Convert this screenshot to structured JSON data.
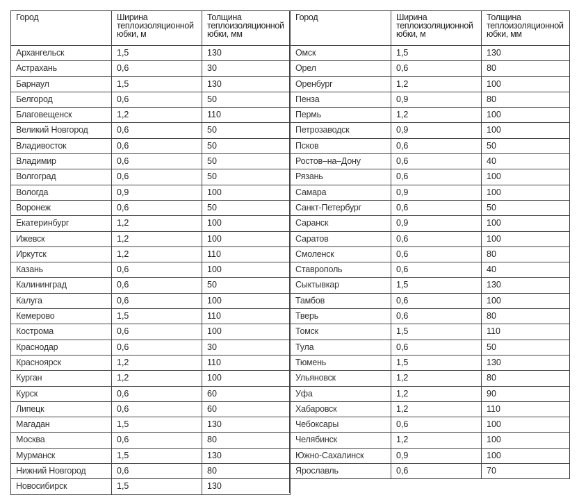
{
  "headers": {
    "city": "Город",
    "width": "Ширина теплоизоляционной юбки, м",
    "thickness": "Толщина теплоизоляционной юбки, мм"
  },
  "left_rows": [
    [
      "Архангельск",
      "1,5",
      "130"
    ],
    [
      "Астрахань",
      "0,6",
      "30"
    ],
    [
      "Барнаул",
      "1,5",
      "130"
    ],
    [
      "Белгород",
      "0,6",
      "50"
    ],
    [
      "Благовещенск",
      "1,2",
      "110"
    ],
    [
      "Великий Новгород",
      "0,6",
      "50"
    ],
    [
      "Владивосток",
      "0,6",
      "50"
    ],
    [
      "Владимир",
      "0,6",
      "50"
    ],
    [
      "Волгоград",
      "0,6",
      "50"
    ],
    [
      "Вологда",
      "0,9",
      "100"
    ],
    [
      "Воронеж",
      "0,6",
      "50"
    ],
    [
      "Екатеринбург",
      "1,2",
      "100"
    ],
    [
      "Ижевск",
      "1,2",
      "100"
    ],
    [
      "Иркутск",
      "1,2",
      "110"
    ],
    [
      "Казань",
      "0,6",
      "100"
    ],
    [
      "Калининград",
      "0,6",
      "50"
    ],
    [
      "Калуга",
      "0,6",
      "100"
    ],
    [
      "Кемерово",
      "1,5",
      "110"
    ],
    [
      "Кострома",
      "0,6",
      "100"
    ],
    [
      "Краснодар",
      "0,6",
      "30"
    ],
    [
      "Красноярск",
      "1,2",
      "110"
    ],
    [
      "Курган",
      "1,2",
      "100"
    ],
    [
      "Курск",
      "0,6",
      "60"
    ],
    [
      "Липецк",
      "0,6",
      "60"
    ],
    [
      "Магадан",
      "1,5",
      "130"
    ],
    [
      "Москва",
      "0,6",
      "80"
    ],
    [
      "Мурманск",
      "1,5",
      "130"
    ],
    [
      "Нижний Новгород",
      "0,6",
      "80"
    ],
    [
      "Новосибирск",
      "1,5",
      "130"
    ]
  ],
  "right_rows": [
    [
      "Омск",
      "1,5",
      "130"
    ],
    [
      "Орел",
      "0,6",
      "80"
    ],
    [
      "Оренбург",
      "1,2",
      "100"
    ],
    [
      "Пенза",
      "0,9",
      "80"
    ],
    [
      "Пермь",
      "1,2",
      "100"
    ],
    [
      "Петрозаводск",
      "0,9",
      "100"
    ],
    [
      "Псков",
      "0,6",
      "50"
    ],
    [
      "Ростов–на–Дону",
      "0,6",
      "40"
    ],
    [
      "Рязань",
      "0,6",
      "100"
    ],
    [
      "Самара",
      "0,9",
      "100"
    ],
    [
      "Санкт-Петербург",
      "0,6",
      "50"
    ],
    [
      "Саранск",
      "0,9",
      "100"
    ],
    [
      "Саратов",
      "0,6",
      "100"
    ],
    [
      "Смоленск",
      "0,6",
      "80"
    ],
    [
      "Ставрополь",
      "0,6",
      "40"
    ],
    [
      "Сыктывкар",
      "1,5",
      "130"
    ],
    [
      "Тамбов",
      "0,6",
      "100"
    ],
    [
      "Тверь",
      "0,6",
      "80"
    ],
    [
      "Томск",
      "1,5",
      "110"
    ],
    [
      "Тула",
      "0,6",
      "50"
    ],
    [
      "Тюмень",
      "1,5",
      "130"
    ],
    [
      "Ульяновск",
      "1,2",
      "80"
    ],
    [
      "Уфа",
      "1,2",
      "90"
    ],
    [
      "Хабаровск",
      "1,2",
      "110"
    ],
    [
      "Чебоксары",
      "0,6",
      "100"
    ],
    [
      "Челябинск",
      "1,2",
      "100"
    ],
    [
      "Южно-Сахалинск",
      "0,9",
      "100"
    ],
    [
      "Ярославль",
      "0,6",
      "70"
    ]
  ]
}
